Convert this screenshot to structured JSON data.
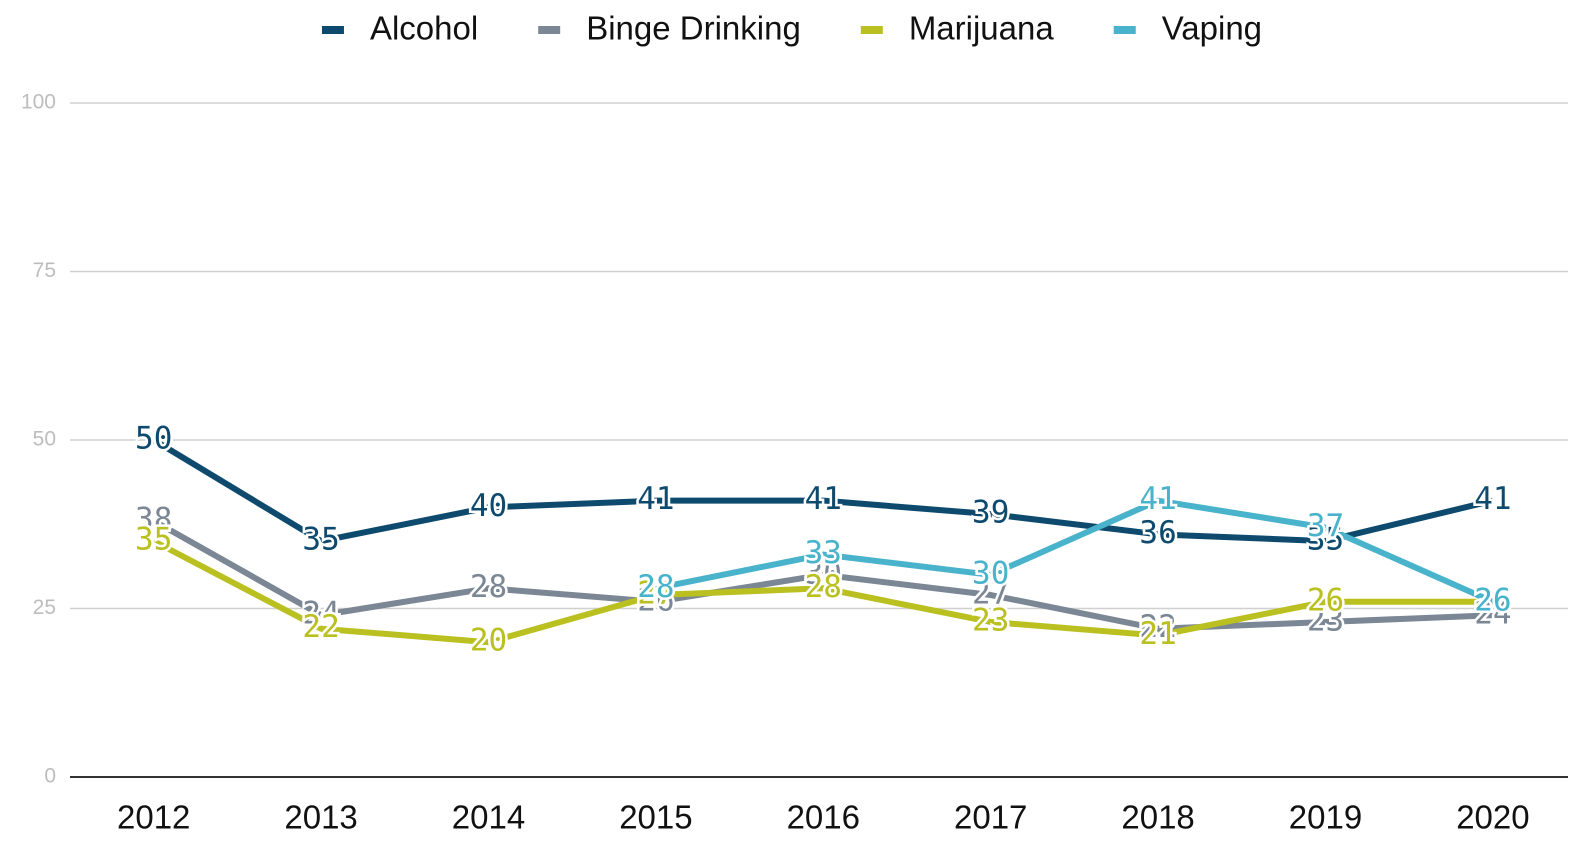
{
  "chart_data": {
    "type": "line",
    "categories": [
      "2012",
      "2013",
      "2014",
      "2015",
      "2016",
      "2017",
      "2018",
      "2019",
      "2020"
    ],
    "series": [
      {
        "name": "Alcohol",
        "color": "#0d4a6e",
        "values": [
          50,
          35,
          40,
          41,
          41,
          39,
          36,
          35,
          41
        ]
      },
      {
        "name": "Binge Drinking",
        "color": "#7b8794",
        "values": [
          38,
          24,
          28,
          26,
          30,
          27,
          22,
          23,
          24
        ]
      },
      {
        "name": "Marijuana",
        "color": "#b9c020",
        "values": [
          35,
          22,
          20,
          27,
          28,
          23,
          21,
          26,
          26
        ]
      },
      {
        "name": "Vaping",
        "color": "#4ab3cc",
        "values": [
          null,
          null,
          null,
          28,
          33,
          30,
          41,
          37,
          26
        ]
      }
    ],
    "ylim": [
      0,
      100
    ],
    "yticks": [
      0,
      25,
      50,
      75,
      100
    ],
    "grid": true,
    "legend": "top"
  }
}
